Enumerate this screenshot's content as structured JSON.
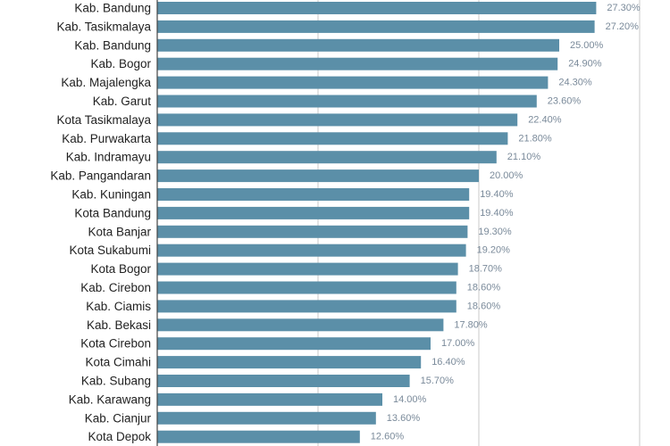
{
  "chart_data": {
    "type": "bar",
    "orientation": "horizontal",
    "categories": [
      "Kab. Bandung",
      "Kab. Tasikmalaya",
      "Kab. Bandung",
      "Kab. Bogor",
      "Kab. Majalengka",
      "Kab. Garut",
      "Kota Tasikmalaya",
      "Kab. Purwakarta",
      "Kab. Indramayu",
      "Kab. Pangandaran",
      "Kab. Kuningan",
      "Kota Bandung",
      "Kota Banjar",
      "Kota Sukabumi",
      "Kota Bogor",
      "Kab. Cirebon",
      "Kab. Ciamis",
      "Kab. Bekasi",
      "Kota Cirebon",
      "Kota Cimahi",
      "Kab. Subang",
      "Kab. Karawang",
      "Kab. Cianjur",
      "Kota Depok"
    ],
    "values": [
      27.3,
      27.2,
      25.0,
      24.9,
      24.3,
      23.6,
      22.4,
      21.8,
      21.1,
      20.0,
      19.4,
      19.4,
      19.3,
      19.2,
      18.7,
      18.6,
      18.6,
      17.8,
      17.0,
      16.4,
      15.7,
      14.0,
      13.6,
      12.6
    ],
    "value_labels": [
      "27.30%",
      "27.20%",
      "25.00%",
      "24.90%",
      "24.30%",
      "23.60%",
      "22.40%",
      "21.80%",
      "21.10%",
      "20.00%",
      "19.40%",
      "19.40%",
      "19.30%",
      "19.20%",
      "18.70%",
      "18.60%",
      "18.60%",
      "17.80%",
      "17.00%",
      "16.40%",
      "15.70%",
      "14.00%",
      "13.60%",
      "12.60%"
    ],
    "xlim": [
      0,
      30
    ],
    "grid": true,
    "bar_color": "#5b8fa8",
    "title": "",
    "xlabel": "",
    "ylabel": ""
  }
}
